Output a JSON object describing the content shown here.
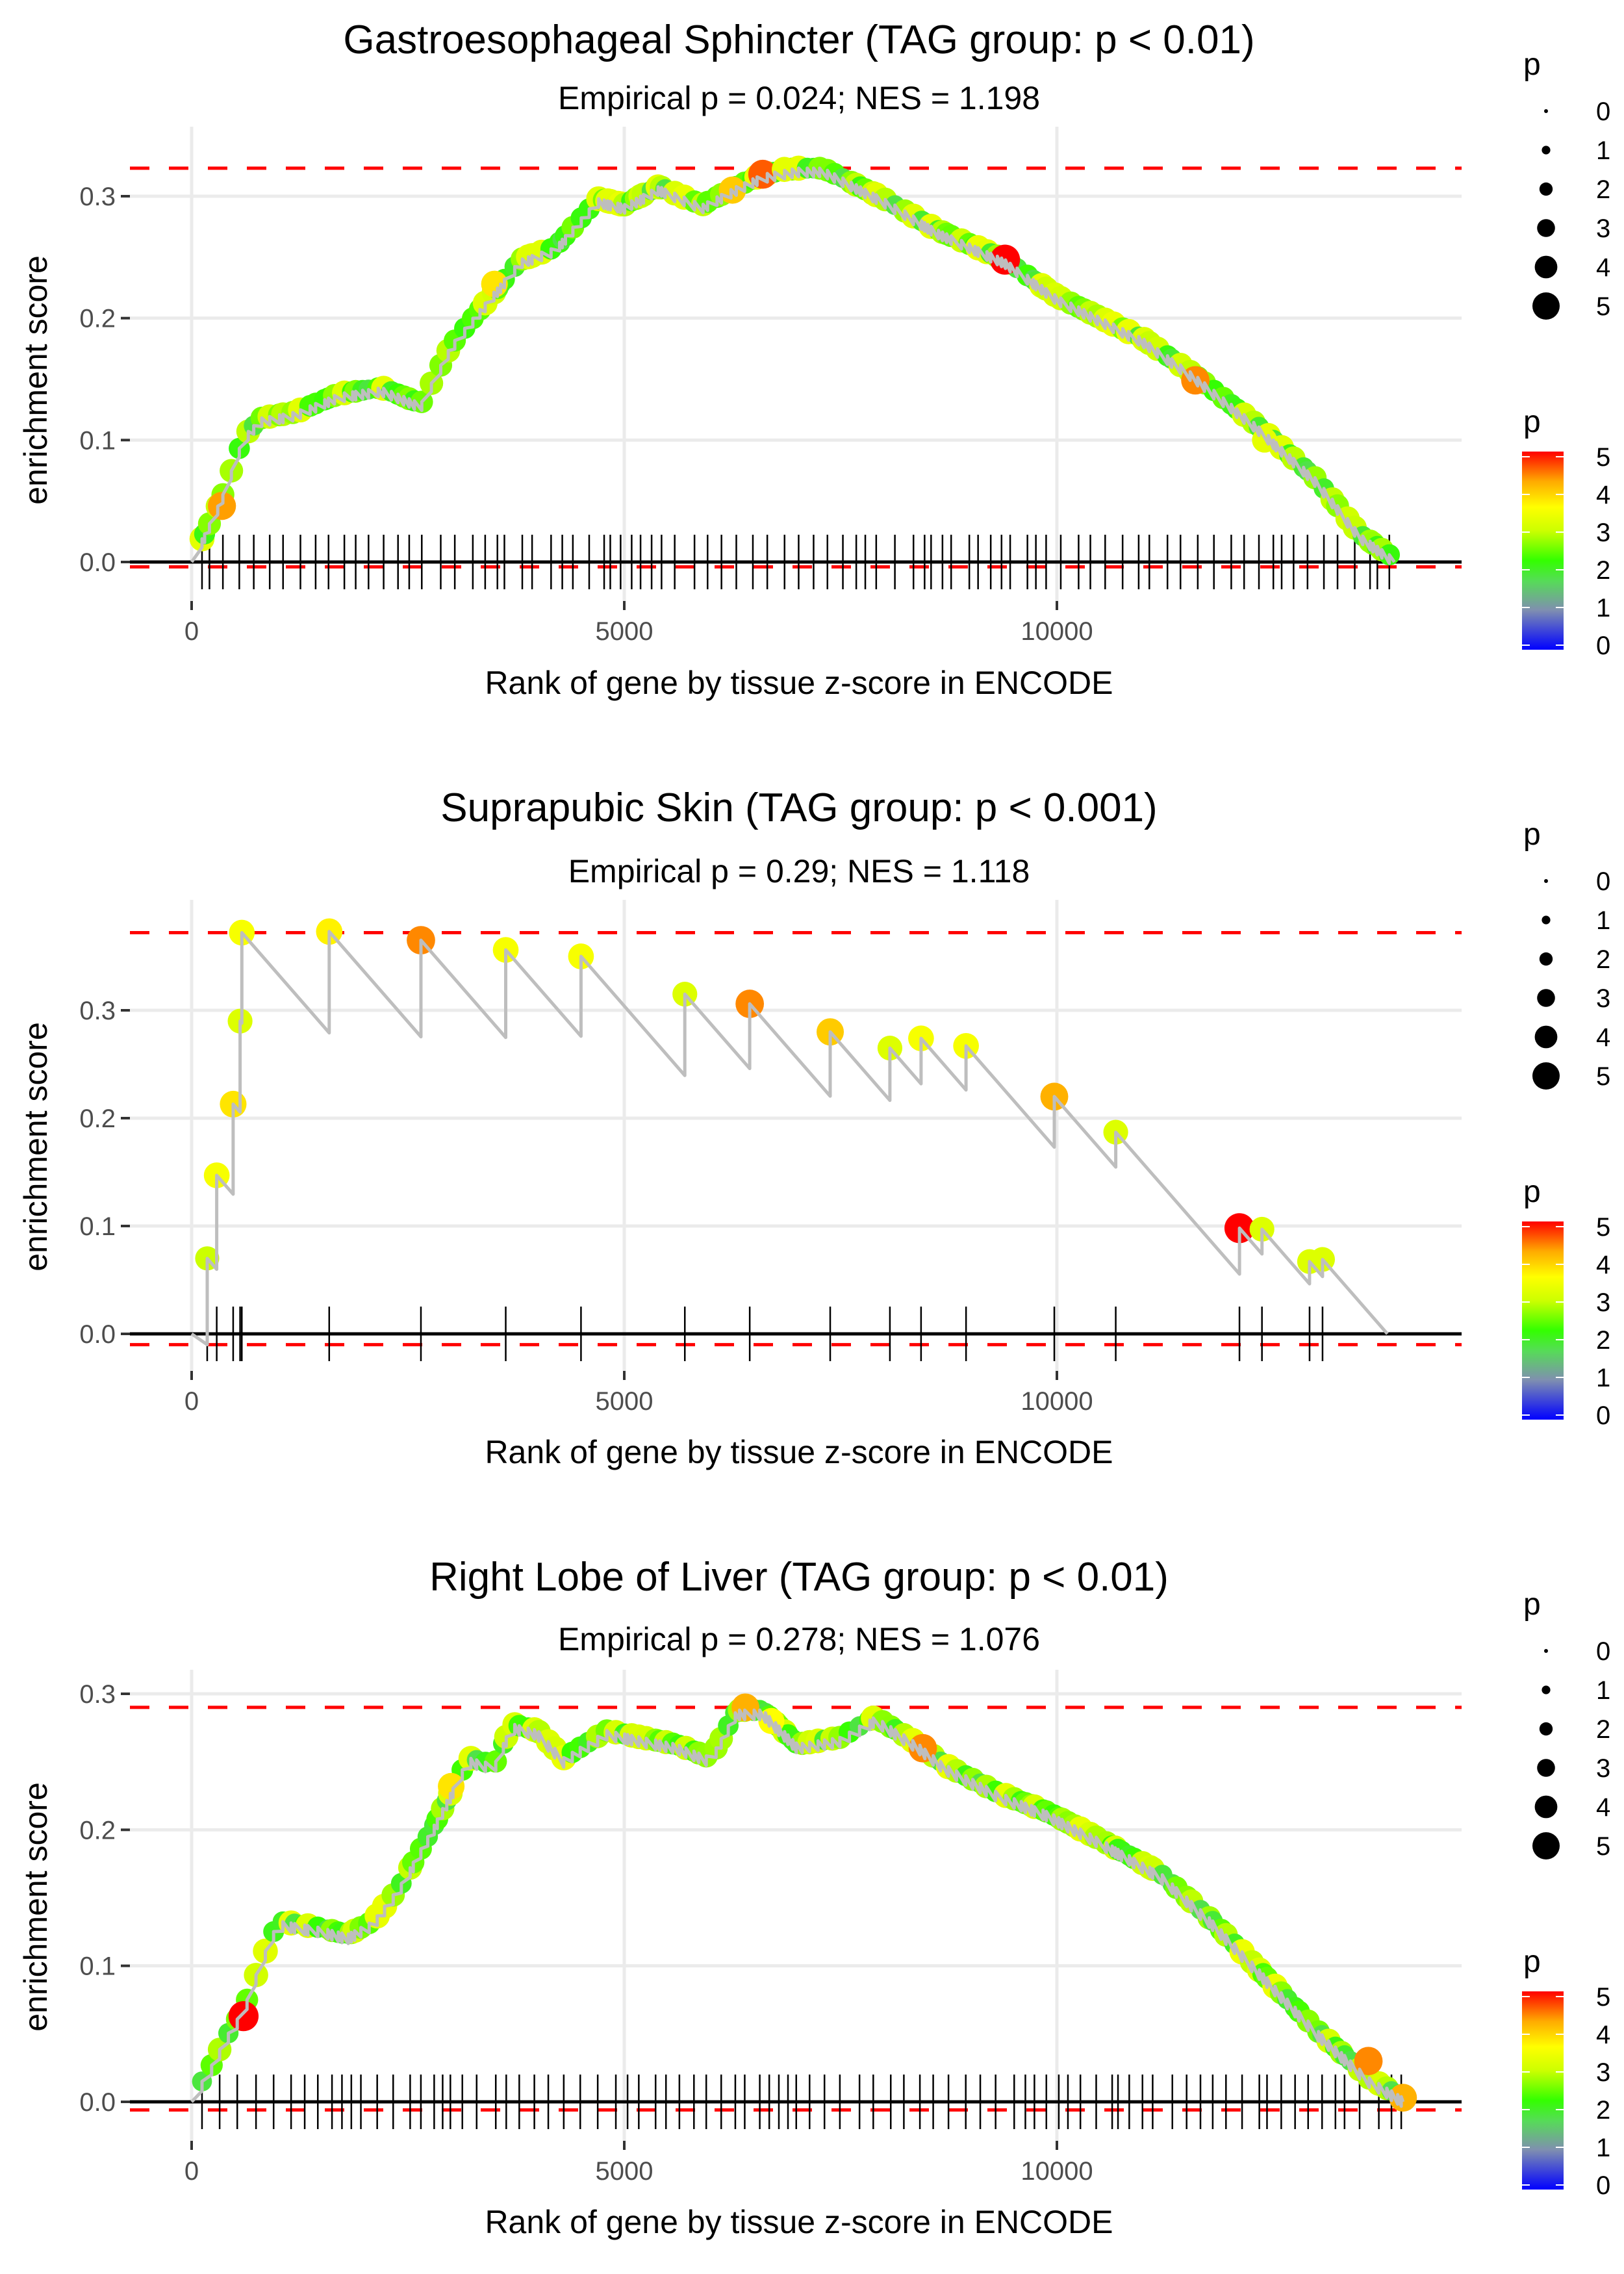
{
  "legend_colors": {
    "gradient": [
      "#0000ff",
      "#7f7fcc",
      "#66cc66",
      "#33ff00",
      "#ccff00",
      "#ffff00",
      "#ffaa00",
      "#ff0000"
    ],
    "threshold_line": "#ff0000",
    "curve": "#bebebe",
    "grid": "#ebebeb"
  },
  "chart_data": [
    {
      "type": "line",
      "title": "Gastroesophageal Sphincter (TAG group: p < 0.01)",
      "subtitle": "Empirical p = 0.024; NES = 1.198",
      "xlabel": "Rank of gene by tissue z-score in ENCODE",
      "ylabel": "enrichment score",
      "xlim": [
        -1000,
        14500
      ],
      "ylim": [
        -0.01,
        0.33
      ],
      "xticks": [
        "0",
        "5000",
        "10000"
      ],
      "yticks": [
        "0.0",
        "0.1",
        "0.2",
        "0.3"
      ],
      "max_es": 0.323,
      "min_es": -0.004,
      "grid": true,
      "curve_anchors": [
        [
          0,
          0
        ],
        [
          150,
          0.02
        ],
        [
          350,
          0.05
        ],
        [
          600,
          0.1
        ],
        [
          800,
          0.115
        ],
        [
          1200,
          0.12
        ],
        [
          1700,
          0.135
        ],
        [
          2200,
          0.14
        ],
        [
          2650,
          0.127
        ],
        [
          3000,
          0.175
        ],
        [
          3400,
          0.21
        ],
        [
          3800,
          0.245
        ],
        [
          4200,
          0.255
        ],
        [
          4700,
          0.295
        ],
        [
          5000,
          0.29
        ],
        [
          5400,
          0.305
        ],
        [
          5900,
          0.29
        ],
        [
          6300,
          0.305
        ],
        [
          6600,
          0.315
        ],
        [
          7000,
          0.32
        ],
        [
          7300,
          0.32
        ],
        [
          8000,
          0.295
        ],
        [
          8600,
          0.27
        ],
        [
          9400,
          0.245
        ],
        [
          10000,
          0.215
        ],
        [
          11000,
          0.18
        ],
        [
          11600,
          0.15
        ],
        [
          12300,
          0.11
        ],
        [
          13000,
          0.065
        ],
        [
          13500,
          0.02
        ],
        [
          13900,
          0.0
        ]
      ],
      "highlight_points": [
        {
          "x": 350,
          "y": 0.046,
          "p": 4.3
        },
        {
          "x": 3500,
          "y": 0.228,
          "p": 3.8
        },
        {
          "x": 6250,
          "y": 0.305,
          "p": 4.0
        },
        {
          "x": 6600,
          "y": 0.318,
          "p": 4.6
        },
        {
          "x": 6850,
          "y": 0.322,
          "p": 3.3
        },
        {
          "x": 9400,
          "y": 0.248,
          "p": 5.0
        },
        {
          "x": 11600,
          "y": 0.149,
          "p": 4.4
        },
        {
          "x": 12400,
          "y": 0.1,
          "p": 3.3
        }
      ],
      "legend": {
        "size_title": "p",
        "size_values": [
          "0",
          "1",
          "2",
          "3",
          "4",
          "5"
        ],
        "color_title": "p",
        "color_values": [
          "5",
          "4",
          "3",
          "2",
          "1",
          "0"
        ]
      }
    },
    {
      "type": "line",
      "title": "Suprapubic Skin (TAG group: p < 0.001)",
      "subtitle": "Empirical p = 0.29; NES = 1.118",
      "xlabel": "Rank of gene by tissue z-score in ENCODE",
      "ylabel": "enrichment score",
      "xlim": [
        -1000,
        14500
      ],
      "ylim": [
        -0.012,
        0.38
      ],
      "xticks": [
        "0",
        "5000",
        "10000"
      ],
      "yticks": [
        "0.0",
        "0.1",
        "0.2",
        "0.3"
      ],
      "max_es": 0.372,
      "min_es": -0.01,
      "grid": true,
      "hits": [
        {
          "x": 180,
          "y": 0.07,
          "p": 3.0
        },
        {
          "x": 290,
          "y": 0.147,
          "p": 3.5
        },
        {
          "x": 480,
          "y": 0.213,
          "p": 3.8
        },
        {
          "x": 560,
          "y": 0.29,
          "p": 3.2
        },
        {
          "x": 580,
          "y": 0.372,
          "p": 3.5
        },
        {
          "x": 1590,
          "y": 0.373,
          "p": 3.7
        },
        {
          "x": 2650,
          "y": 0.365,
          "p": 4.4
        },
        {
          "x": 3630,
          "y": 0.356,
          "p": 3.5
        },
        {
          "x": 4500,
          "y": 0.35,
          "p": 3.5
        },
        {
          "x": 5700,
          "y": 0.315,
          "p": 3.2
        },
        {
          "x": 6450,
          "y": 0.306,
          "p": 4.4
        },
        {
          "x": 7380,
          "y": 0.28,
          "p": 4.0
        },
        {
          "x": 8070,
          "y": 0.265,
          "p": 3.2
        },
        {
          "x": 8430,
          "y": 0.274,
          "p": 3.5
        },
        {
          "x": 8950,
          "y": 0.267,
          "p": 3.5
        },
        {
          "x": 9970,
          "y": 0.22,
          "p": 4.2
        },
        {
          "x": 10680,
          "y": 0.187,
          "p": 3.2
        },
        {
          "x": 12110,
          "y": 0.098,
          "p": 5.0
        },
        {
          "x": 12370,
          "y": 0.097,
          "p": 3.2
        },
        {
          "x": 12920,
          "y": 0.067,
          "p": 3.2
        },
        {
          "x": 13070,
          "y": 0.069,
          "p": 3.2
        }
      ],
      "end_rank": 13820,
      "legend": {
        "size_title": "p",
        "size_values": [
          "0",
          "1",
          "2",
          "3",
          "4",
          "5"
        ],
        "color_title": "p",
        "color_values": [
          "5",
          "4",
          "3",
          "2",
          "1",
          "0"
        ]
      }
    },
    {
      "type": "line",
      "title": "Right Lobe of Liver (TAG group: p < 0.01)",
      "subtitle": "Empirical p = 0.278; NES = 1.076",
      "xlabel": "Rank of gene by tissue z-score in ENCODE",
      "ylabel": "enrichment score",
      "xlim": [
        -1000,
        14500
      ],
      "ylim": [
        -0.008,
        0.31
      ],
      "xticks": [
        "0",
        "5000",
        "10000"
      ],
      "yticks": [
        "0.0",
        "0.1",
        "0.2",
        "0.3"
      ],
      "max_es": 0.29,
      "min_es": -0.006,
      "grid": true,
      "curve_anchors": [
        [
          0,
          0
        ],
        [
          200,
          0.02
        ],
        [
          400,
          0.045
        ],
        [
          600,
          0.065
        ],
        [
          800,
          0.1
        ],
        [
          1000,
          0.13
        ],
        [
          1500,
          0.125
        ],
        [
          1800,
          0.12
        ],
        [
          2100,
          0.13
        ],
        [
          2400,
          0.155
        ],
        [
          2800,
          0.2
        ],
        [
          3200,
          0.25
        ],
        [
          3500,
          0.245
        ],
        [
          3700,
          0.275
        ],
        [
          4000,
          0.27
        ],
        [
          4300,
          0.25
        ],
        [
          4800,
          0.27
        ],
        [
          5200,
          0.265
        ],
        [
          5600,
          0.26
        ],
        [
          6000,
          0.25
        ],
        [
          6300,
          0.285
        ],
        [
          6600,
          0.285
        ],
        [
          7000,
          0.26
        ],
        [
          7500,
          0.265
        ],
        [
          7900,
          0.28
        ],
        [
          8400,
          0.26
        ],
        [
          8700,
          0.245
        ],
        [
          9300,
          0.225
        ],
        [
          9900,
          0.21
        ],
        [
          10500,
          0.19
        ],
        [
          11200,
          0.165
        ],
        [
          11800,
          0.13
        ],
        [
          12400,
          0.09
        ],
        [
          13000,
          0.05
        ],
        [
          13600,
          0.015
        ],
        [
          14000,
          0.0
        ]
      ],
      "highlight_points": [
        {
          "x": 600,
          "y": 0.063,
          "p": 5.0
        },
        {
          "x": 3000,
          "y": 0.232,
          "p": 3.8
        },
        {
          "x": 6400,
          "y": 0.29,
          "p": 4.2
        },
        {
          "x": 6700,
          "y": 0.28,
          "p": 3.6
        },
        {
          "x": 8450,
          "y": 0.26,
          "p": 4.4
        },
        {
          "x": 13600,
          "y": 0.03,
          "p": 4.4
        },
        {
          "x": 14000,
          "y": 0.003,
          "p": 4.2
        }
      ],
      "legend": {
        "size_title": "p",
        "size_values": [
          "0",
          "1",
          "2",
          "3",
          "4",
          "5"
        ],
        "color_title": "p",
        "color_values": [
          "5",
          "4",
          "3",
          "2",
          "1",
          "0"
        ]
      }
    }
  ]
}
